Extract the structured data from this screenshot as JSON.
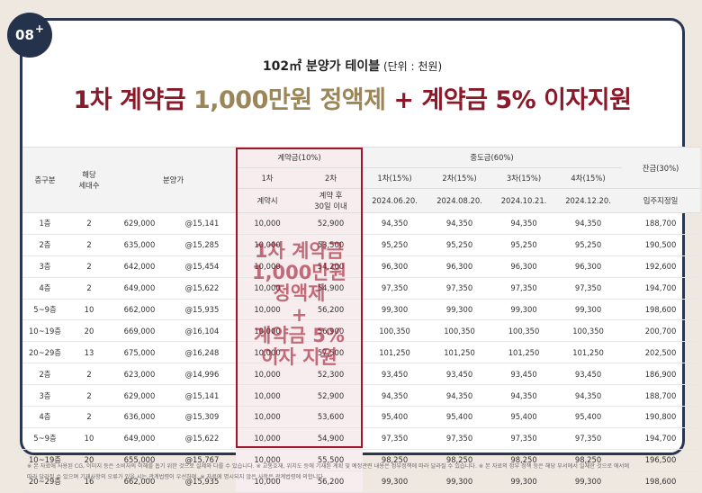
{
  "badge": {
    "number": "08",
    "plus": "+"
  },
  "subtitle": {
    "text": "102㎡ 분양가 테이블",
    "unit": " (단위 : 천원)"
  },
  "headline": {
    "part1": "1차 계약금",
    "part2": "1,000만원 정액제",
    "part3": "+",
    "part4": "계약금 5%",
    "part5": "이자지원"
  },
  "table": {
    "headers": {
      "floor": "층구분",
      "units_l1": "해당",
      "units_l2": "세대수",
      "price": "분양가",
      "deposit": "계약금(10%)",
      "dep1": "1차",
      "dep2": "2차",
      "dep1_sub": "계약시",
      "dep2_sub_l1": "계약 후",
      "dep2_sub_l2": "30일 이내",
      "interim": "중도금(60%)",
      "int1": "1차(15%)",
      "int2": "2차(15%)",
      "int3": "3차(15%)",
      "int4": "4차(15%)",
      "int1_date": "2024.06.20.",
      "int2_date": "2024.08.20.",
      "int3_date": "2024.10.21.",
      "int4_date": "2024.12.20.",
      "balance": "잔금(30%)",
      "balance_sub": "입주지정일"
    },
    "rows": [
      [
        "1층",
        "2",
        "629,000",
        "@15,141",
        "10,000",
        "52,900",
        "94,350",
        "94,350",
        "94,350",
        "94,350",
        "188,700"
      ],
      [
        "2층",
        "2",
        "635,000",
        "@15,285",
        "10,000",
        "53,500",
        "95,250",
        "95,250",
        "95,250",
        "95,250",
        "190,500"
      ],
      [
        "3층",
        "2",
        "642,000",
        "@15,454",
        "10,000",
        "54,200",
        "96,300",
        "96,300",
        "96,300",
        "96,300",
        "192,600"
      ],
      [
        "4층",
        "2",
        "649,000",
        "@15,622",
        "10,000",
        "54,900",
        "97,350",
        "97,350",
        "97,350",
        "97,350",
        "194,700"
      ],
      [
        "5~9층",
        "10",
        "662,000",
        "@15,935",
        "10,000",
        "56,200",
        "99,300",
        "99,300",
        "99,300",
        "99,300",
        "198,600"
      ],
      [
        "10~19층",
        "20",
        "669,000",
        "@16,104",
        "10,000",
        "56,900",
        "100,350",
        "100,350",
        "100,350",
        "100,350",
        "200,700"
      ],
      [
        "20~29층",
        "13",
        "675,000",
        "@16,248",
        "10,000",
        "57,500",
        "101,250",
        "101,250",
        "101,250",
        "101,250",
        "202,500"
      ],
      [
        "2층",
        "2",
        "623,000",
        "@14,996",
        "10,000",
        "52,300",
        "93,450",
        "93,450",
        "93,450",
        "93,450",
        "186,900"
      ],
      [
        "3층",
        "2",
        "629,000",
        "@15,141",
        "10,000",
        "52,900",
        "94,350",
        "94,350",
        "94,350",
        "94,350",
        "188,700"
      ],
      [
        "4층",
        "2",
        "636,000",
        "@15,309",
        "10,000",
        "53,600",
        "95,400",
        "95,400",
        "95,400",
        "95,400",
        "190,800"
      ],
      [
        "5~9층",
        "10",
        "649,000",
        "@15,622",
        "10,000",
        "54,900",
        "97,350",
        "97,350",
        "97,350",
        "97,350",
        "194,700"
      ],
      [
        "10~19층",
        "20",
        "655,000",
        "@15,767",
        "10,000",
        "55,500",
        "98,250",
        "98,250",
        "98,250",
        "98,250",
        "196,500"
      ],
      [
        "20~29층",
        "16",
        "662,000",
        "@15,935",
        "10,000",
        "56,200",
        "99,300",
        "99,300",
        "99,300",
        "99,300",
        "198,600"
      ]
    ]
  },
  "overlay": {
    "l1": "1차 계약금",
    "l2": "1,000만원",
    "l3": "정액제",
    "l4": "+",
    "l5": "계약금 5%",
    "l6": "이자 지원"
  },
  "footnote": {
    "text": "※ 본 자료에 사용된 CG, 이미지 등은 소비자의 이해를 돕기 위한 것으로 실제와 다를 수 있습니다.  ※ 교통호재, 위치도 등에 기재된 계획 및 예정관련 내용은 정부정책에 따라 달라질 수 있습니다.  ※ 본 자료의 정부 정책 등은 해당 부서에서 일체한 것으로 에서에",
    "text2": "따라 달라질 수 있으며 기재사항의 오류가 있을 시는 관계법령이 우선하며, ※ 자료에 명시되지 않은 사항은 관계법령에 의합니다."
  }
}
